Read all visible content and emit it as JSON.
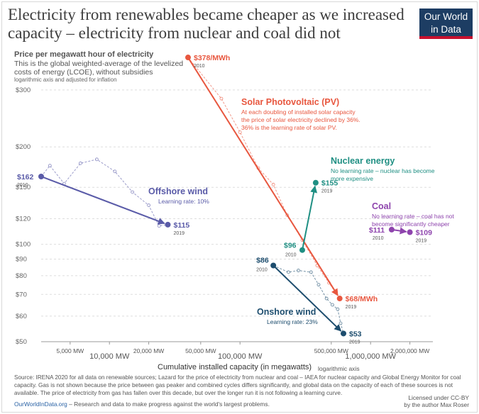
{
  "title": "Electricity from renewables became cheaper as we increased capacity – electricity from nuclear and coal did not",
  "logo": {
    "line1": "Our World",
    "line2": "in Data"
  },
  "subtitle": "Price per megawatt hour of electricity",
  "description": "This is the global weighted-average of the levelized costs of energy (LCOE), without subsidies",
  "axis_note": "logarithmic axis and adjusted for inflation",
  "x_axis_label": "Cumulative installed capacity (in megawatts)",
  "x_axis_note": "logarithmic axis",
  "source": "Source: IRENA 2020 for all data on renewable sources; Lazard for the price of electricity from nuclear and coal – IAEA for nuclear capacity and Global Energy Monitor for coal capacity. Gas is not shown because the price between gas peaker and combined cycles differs significantly, and global data on the capacity of each of these sources is not available. The price of electricity from gas has fallen over this decade, but over the longer run it is not following a learning curve.",
  "footer": {
    "link": "OurWorldInData.org",
    "text": " – Research and data to make progress against the world's largest problems."
  },
  "license": {
    "line1": "Licensed under CC-BY",
    "line2": "by the author Max Roser"
  },
  "chart_data": {
    "type": "scatter",
    "title": "Electricity from renewables became cheaper as we increased capacity – electricity from nuclear and coal did not",
    "xlabel": "Cumulative installed capacity (in megawatts)",
    "ylabel": "Price per megawatt hour of electricity",
    "xscale": "log",
    "yscale": "log",
    "xlim": [
      3000,
      3000000
    ],
    "ylim": [
      50,
      380
    ],
    "x_ticks": [
      {
        "value": 5000,
        "label": "5,000 MW",
        "major": false
      },
      {
        "value": 10000,
        "label": "10,000 MW",
        "major": true
      },
      {
        "value": 20000,
        "label": "20,000 MW",
        "major": false
      },
      {
        "value": 50000,
        "label": "50,000 MW",
        "major": false
      },
      {
        "value": 100000,
        "label": "100,000 MW",
        "major": true
      },
      {
        "value": 500000,
        "label": "500,000 MW",
        "major": false
      },
      {
        "value": 1000000,
        "label": "1,000,000 MW",
        "major": true
      },
      {
        "value": 2000000,
        "label": "2,000,000 MW",
        "major": false
      }
    ],
    "y_ticks": [
      {
        "value": 300,
        "label": "$300"
      },
      {
        "value": 200,
        "label": "$200"
      },
      {
        "value": 150,
        "label": "$150"
      },
      {
        "value": 120,
        "label": "$120"
      },
      {
        "value": 100,
        "label": "$100"
      },
      {
        "value": 90,
        "label": "$90"
      },
      {
        "value": 80,
        "label": "$80"
      },
      {
        "value": 70,
        "label": "$70"
      },
      {
        "value": 60,
        "label": "$60"
      },
      {
        "value": 50,
        "label": "$50"
      }
    ],
    "series": [
      {
        "name": "Solar Photovoltaic (PV)",
        "color": "#e8573f",
        "start": {
          "x": 40000,
          "y": 378,
          "label": "$378/MWh",
          "year": "2010"
        },
        "end": {
          "x": 580000,
          "y": 68,
          "label": "$68/MWh",
          "year": "2019"
        },
        "annual": [
          [
            40000,
            378
          ],
          [
            72000,
            282
          ],
          [
            100000,
            222
          ],
          [
            138000,
            172
          ],
          [
            180000,
            153
          ],
          [
            230000,
            123
          ],
          [
            300000,
            103
          ],
          [
            390000,
            86
          ],
          [
            480000,
            76
          ],
          [
            580000,
            68
          ]
        ],
        "annotation_title": "Solar Photovoltaic (PV)",
        "annotation_lines": [
          "At each doubling of installed solar capacity",
          "the price of solar electricity declined by 36%.",
          "36% is the learning rate of solar PV."
        ]
      },
      {
        "name": "Nuclear energy",
        "color": "#1f8f83",
        "start": {
          "x": 300000,
          "y": 96,
          "label": "$96",
          "year": "2010"
        },
        "end": {
          "x": 380000,
          "y": 155,
          "label": "$155",
          "year": "2019"
        },
        "annual": [],
        "annotation_title": "Nuclear energy",
        "annotation_lines": [
          "No learning rate – nuclear has become",
          "more expensive"
        ]
      },
      {
        "name": "Offshore wind",
        "color": "#5a5ba8",
        "start": {
          "x": 3000,
          "y": 162,
          "label": "$162",
          "year": "2010"
        },
        "end": {
          "x": 28000,
          "y": 115,
          "label": "$115",
          "year": "2019"
        },
        "annual": [
          [
            3000,
            162
          ],
          [
            3500,
            175
          ],
          [
            4500,
            154
          ],
          [
            6000,
            178
          ],
          [
            8000,
            183
          ],
          [
            11000,
            168
          ],
          [
            15000,
            145
          ],
          [
            20000,
            132
          ],
          [
            24000,
            114
          ],
          [
            28000,
            115
          ]
        ],
        "annotation_title": "Offshore wind",
        "annotation_lines": [
          "Learning rate: 10%"
        ]
      },
      {
        "name": "Onshore wind",
        "color": "#1d4d6e",
        "start": {
          "x": 180000,
          "y": 86,
          "label": "$86",
          "year": "2010"
        },
        "end": {
          "x": 620000,
          "y": 53,
          "label": "$53",
          "year": "2019"
        },
        "annual": [
          [
            180000,
            86
          ],
          [
            235000,
            82
          ],
          [
            280000,
            83
          ],
          [
            350000,
            82
          ],
          [
            400000,
            75
          ],
          [
            460000,
            68
          ],
          [
            510000,
            65
          ],
          [
            560000,
            63
          ],
          [
            590000,
            57
          ],
          [
            620000,
            53
          ]
        ],
        "annotation_title": "Onshore wind",
        "annotation_lines": [
          "Learning rate: 23%"
        ]
      },
      {
        "name": "Coal",
        "color": "#8e44ad",
        "start": {
          "x": 1450000,
          "y": 111,
          "label": "$111",
          "year": "2010"
        },
        "end": {
          "x": 2000000,
          "y": 109,
          "label": "$109",
          "year": "2019"
        },
        "annual": [],
        "annotation_title": "Coal",
        "annotation_lines": [
          "No learning rate – coal has not",
          "become significantly cheaper"
        ]
      }
    ]
  }
}
